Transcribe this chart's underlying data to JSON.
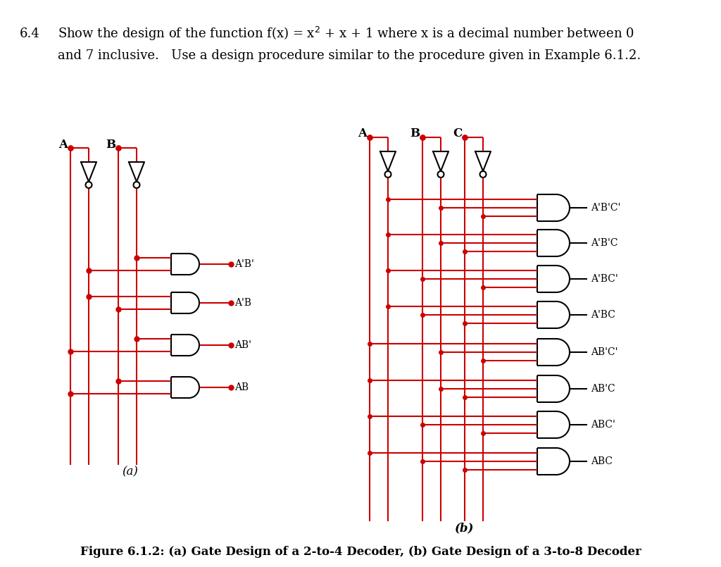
{
  "bg_color": "#ffffff",
  "wire_color": "#cc0000",
  "gate_color": "#000000",
  "text_color": "#000000",
  "caption": "Figure 6.1.2: (a) Gate Design of a 2-to-4 Decoder, (b) Gate Design of a 3-to-8 Decoder",
  "label_a": "(a)",
  "label_b": "(b)",
  "header1": "6.4    Show the design of the function f(x) = x",
  "header1b": " + x + 1 where x is a decimal number between 0",
  "header2": "         and 7 inclusive.   Use a design procedure similar to the procedure given in Example 6.1.2.",
  "a_inputs": [
    "A",
    "B"
  ],
  "b_inputs": [
    "A",
    "B",
    "C"
  ],
  "a_outputs": [
    "A'B'",
    "A'B",
    "AB'",
    "AB"
  ],
  "b_outputs": [
    "A'B'C'",
    "A'B'C",
    "A'BC'",
    "A'BC",
    "AB'C'",
    "AB'C",
    "ABC'",
    "ABC"
  ]
}
